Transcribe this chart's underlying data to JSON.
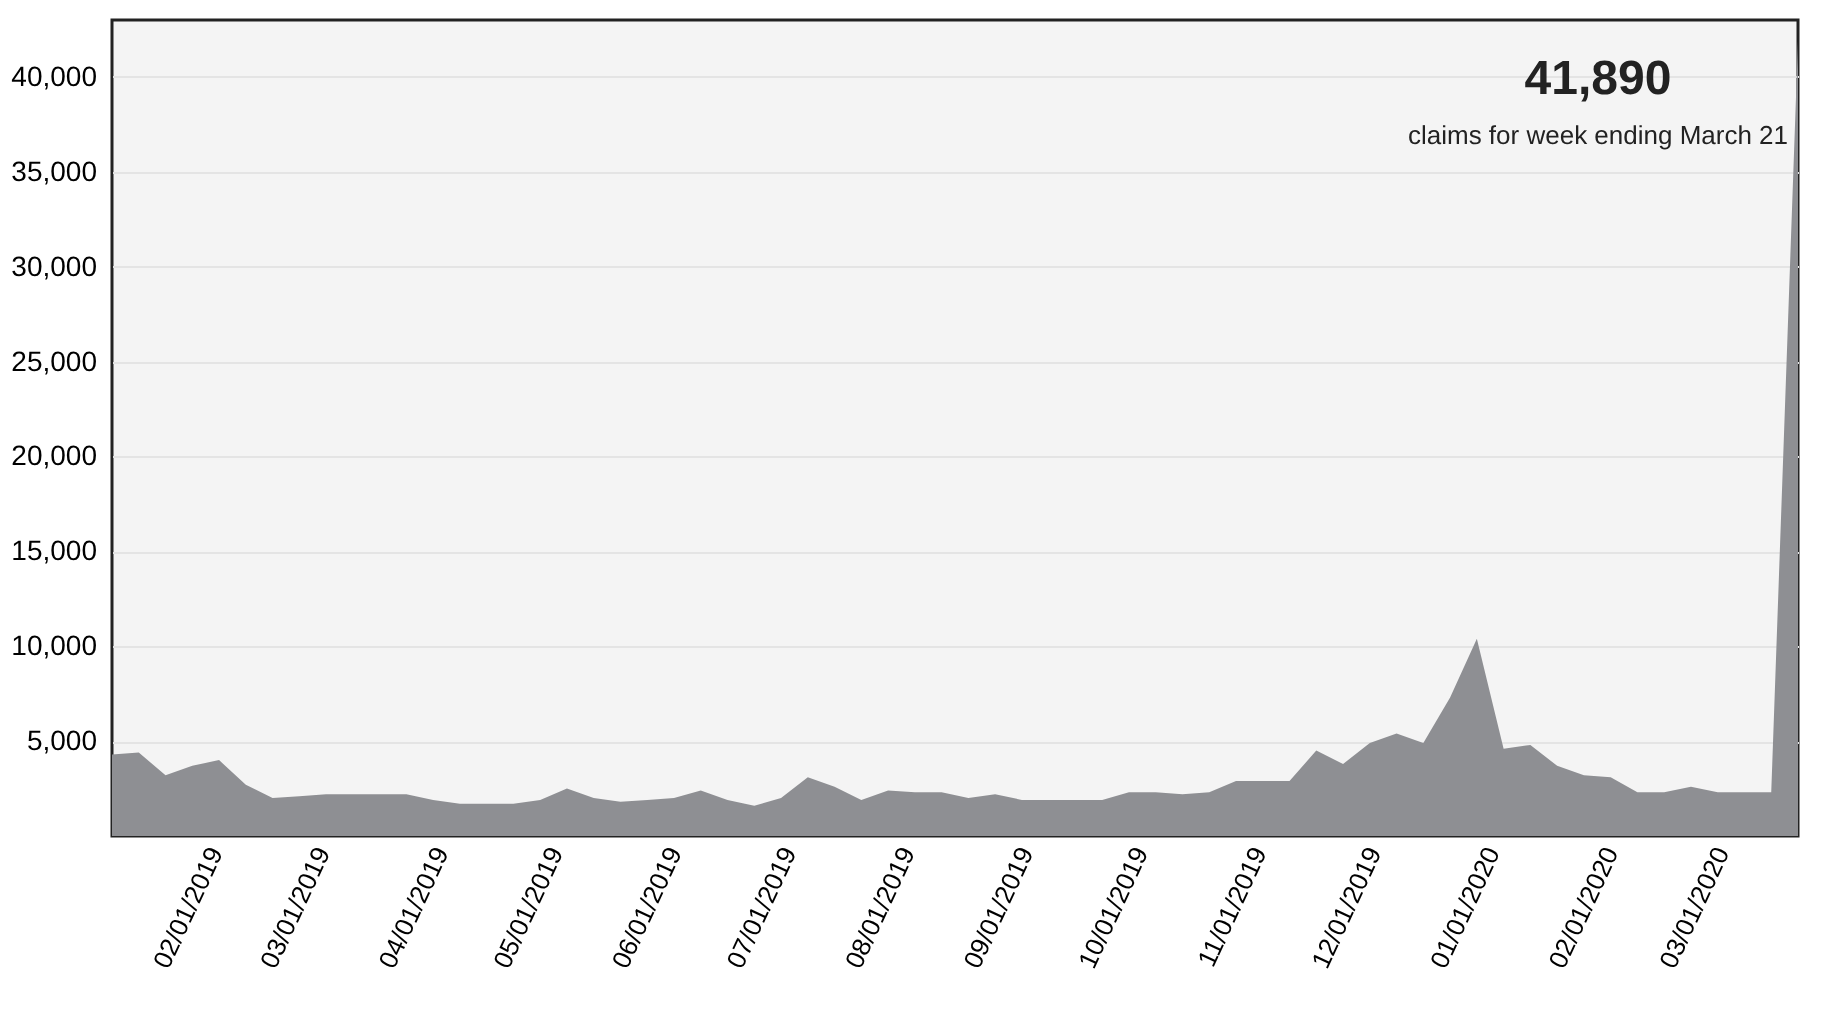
{
  "chart_data": {
    "type": "area",
    "annotations": [
      "41,890",
      "claims for week ending March 21"
    ],
    "x": [
      "2019-01-05",
      "2019-01-12",
      "2019-01-19",
      "2019-01-26",
      "2019-02-02",
      "2019-02-09",
      "2019-02-16",
      "2019-02-23",
      "2019-03-02",
      "2019-03-09",
      "2019-03-16",
      "2019-03-23",
      "2019-03-30",
      "2019-04-06",
      "2019-04-13",
      "2019-04-20",
      "2019-04-27",
      "2019-05-04",
      "2019-05-11",
      "2019-05-18",
      "2019-05-25",
      "2019-06-01",
      "2019-06-08",
      "2019-06-15",
      "2019-06-22",
      "2019-06-29",
      "2019-07-06",
      "2019-07-13",
      "2019-07-20",
      "2019-07-27",
      "2019-08-03",
      "2019-08-10",
      "2019-08-17",
      "2019-08-24",
      "2019-08-31",
      "2019-09-07",
      "2019-09-14",
      "2019-09-21",
      "2019-09-28",
      "2019-10-05",
      "2019-10-12",
      "2019-10-19",
      "2019-10-26",
      "2019-11-02",
      "2019-11-09",
      "2019-11-16",
      "2019-11-23",
      "2019-11-30",
      "2019-12-07",
      "2019-12-14",
      "2019-12-21",
      "2019-12-28",
      "2020-01-04",
      "2020-01-11",
      "2020-01-18",
      "2020-01-25",
      "2020-02-01",
      "2020-02-08",
      "2020-02-15",
      "2020-02-22",
      "2020-02-29",
      "2020-03-07",
      "2020-03-14",
      "2020-03-21"
    ],
    "series": [
      {
        "color": "#8e8f93",
        "values": [
          4300,
          4400,
          3200,
          3700,
          4000,
          2700,
          2000,
          2100,
          2200,
          2200,
          2200,
          2200,
          1900,
          1700,
          1700,
          1700,
          1900,
          2500,
          2000,
          1800,
          1900,
          2000,
          2400,
          1900,
          1600,
          2000,
          3100,
          2600,
          1900,
          2400,
          2300,
          2300,
          2000,
          2200,
          1900,
          1900,
          1900,
          1900,
          2300,
          2300,
          2200,
          2300,
          2900,
          2900,
          2900,
          4500,
          3800,
          4900,
          5400,
          4900,
          7300,
          10400,
          4600,
          4800,
          3700,
          3200,
          3100,
          2300,
          2300,
          2600,
          2300,
          2300,
          2300,
          41890
        ]
      }
    ],
    "xlim": [
      "2019-01-05",
      "2020-03-21"
    ],
    "xticks": [
      {
        "value": "2019-02-01",
        "label": "02/01/2019"
      },
      {
        "value": "2019-03-01",
        "label": "03/01/2019"
      },
      {
        "value": "2019-04-01",
        "label": "04/01/2019"
      },
      {
        "value": "2019-05-01",
        "label": "05/01/2019"
      },
      {
        "value": "2019-06-01",
        "label": "06/01/2019"
      },
      {
        "value": "2019-07-01",
        "label": "07/01/2019"
      },
      {
        "value": "2019-08-01",
        "label": "08/01/2019"
      },
      {
        "value": "2019-09-01",
        "label": "09/01/2019"
      },
      {
        "value": "2019-10-01",
        "label": "10/01/2019"
      },
      {
        "value": "2019-11-01",
        "label": "11/01/2019"
      },
      {
        "value": "2019-12-01",
        "label": "12/01/2019"
      },
      {
        "value": "2020-01-01",
        "label": "01/01/2020"
      },
      {
        "value": "2020-02-01",
        "label": "02/01/2020"
      },
      {
        "value": "2020-03-01",
        "label": "03/01/2020"
      }
    ],
    "ylim": [
      0,
      43000
    ],
    "yticks": [
      {
        "value": 5000,
        "label": "5,000"
      },
      {
        "value": 10000,
        "label": "10,000"
      },
      {
        "value": 15000,
        "label": "15,000"
      },
      {
        "value": 20000,
        "label": "20,000"
      },
      {
        "value": 25000,
        "label": "25,000"
      },
      {
        "value": 30000,
        "label": "30,000"
      },
      {
        "value": 35000,
        "label": "35,000"
      },
      {
        "value": 40000,
        "label": "40,000"
      }
    ],
    "grid": "y"
  }
}
